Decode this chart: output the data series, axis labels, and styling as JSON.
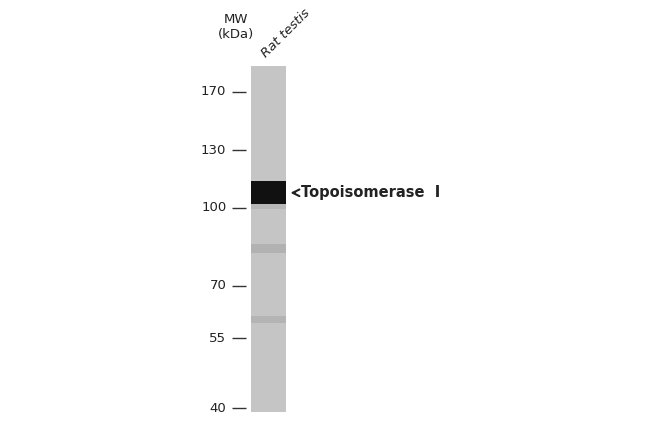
{
  "background_color": "#ffffff",
  "gel_lane_color": "#c8c8c8",
  "mw_markers": [
    170,
    130,
    100,
    70,
    55,
    40
  ],
  "mw_label": "MW\n(kDa)",
  "sample_label": "Rat testis",
  "annotation_text": "Topoisomerase  I",
  "annotation_mw": 107,
  "main_band_mw": 107,
  "faint_band1_mw": 83,
  "faint_band2_mw": 60,
  "tick_line_color": "#333333",
  "text_color": "#222222",
  "font_size_mw": 9.5,
  "font_size_label": 9.5,
  "font_size_annotation": 10.5,
  "log_min": 1.58,
  "log_max": 2.342
}
